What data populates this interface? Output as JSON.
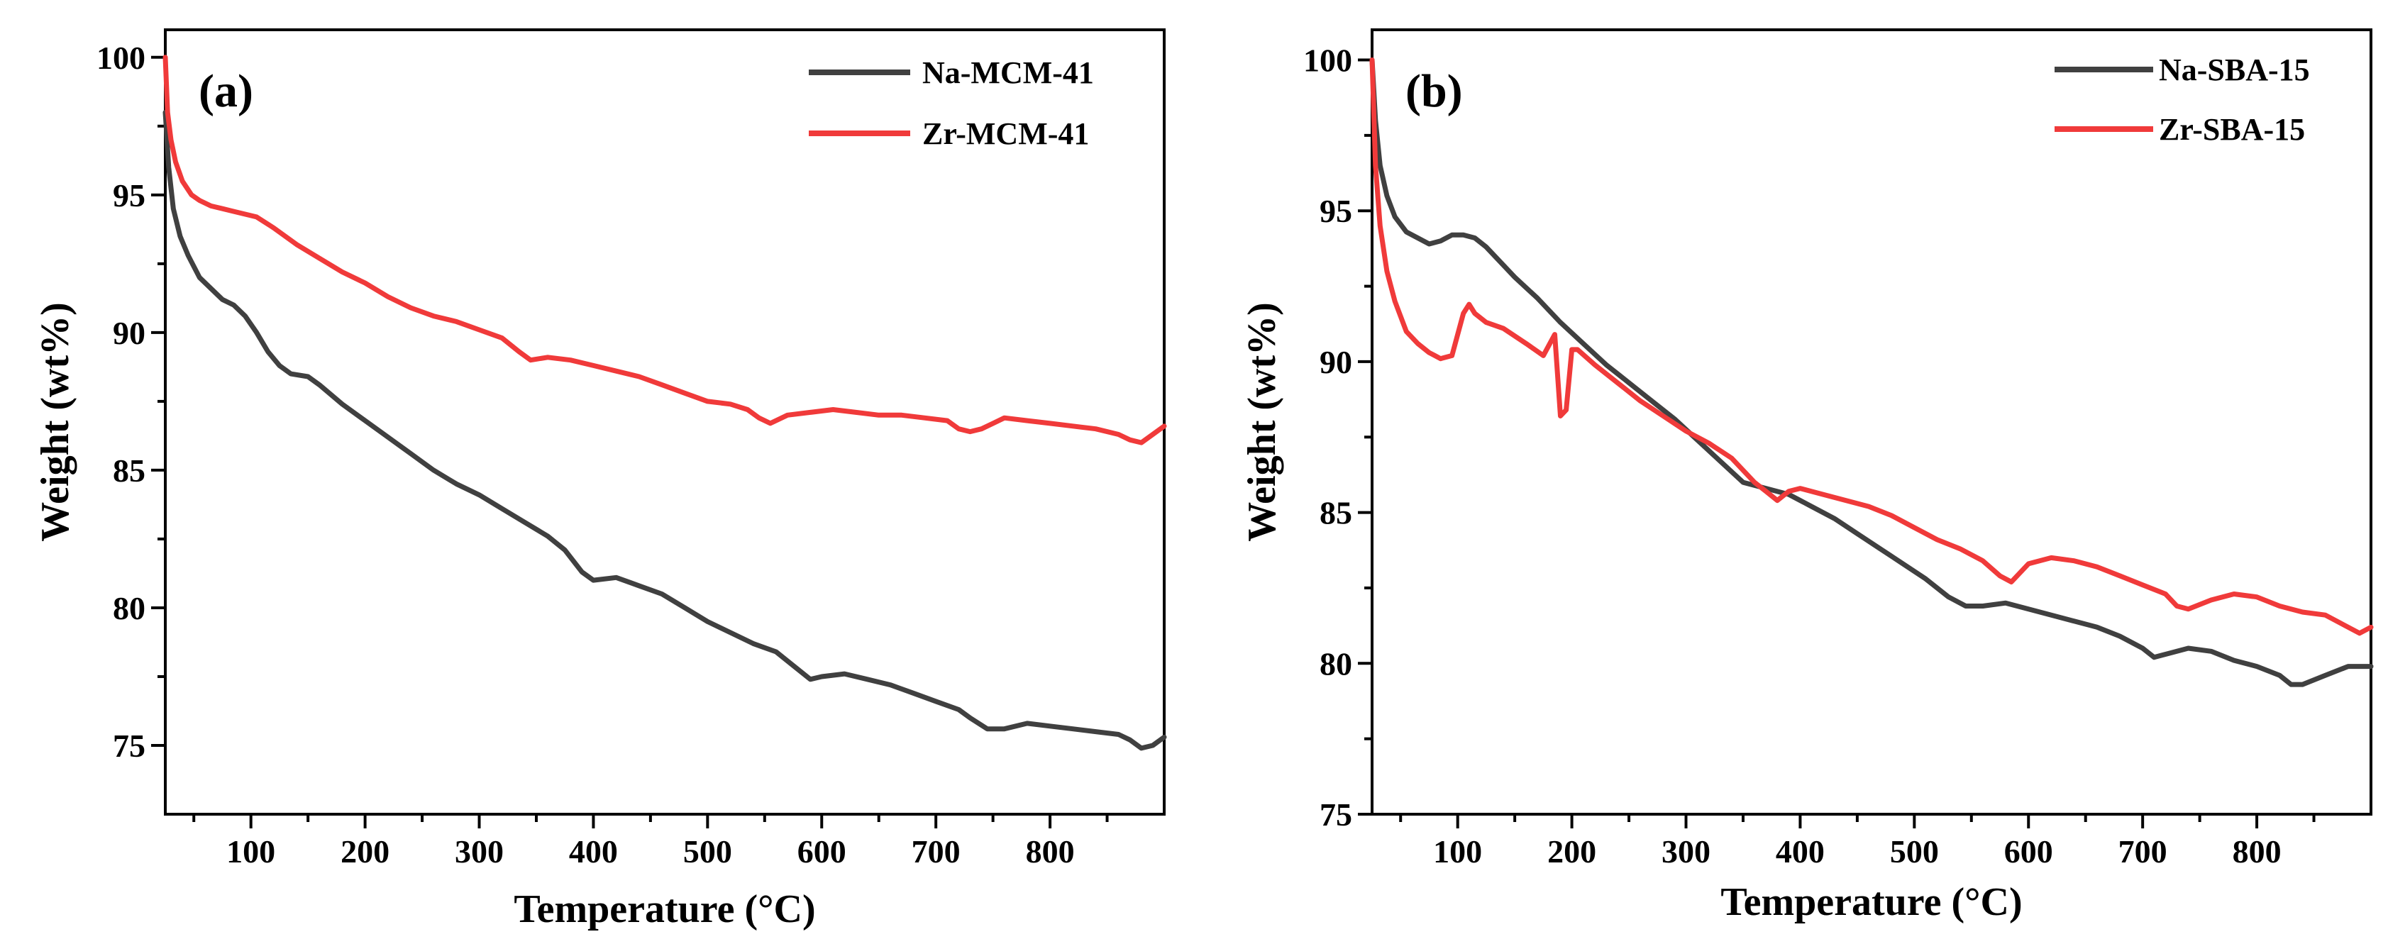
{
  "chart_data": [
    {
      "type": "line",
      "panel_label": "(a)",
      "xlabel": "Temperature (°C)",
      "ylabel": "Weight (wt%)",
      "xlim": [
        25,
        900
      ],
      "ylim": [
        72.5,
        101
      ],
      "xticks": [
        100,
        200,
        300,
        400,
        500,
        600,
        700,
        800
      ],
      "yticks": [
        75,
        80,
        85,
        90,
        95,
        100
      ],
      "legend_position": "top-right",
      "series": [
        {
          "name": "Na-MCM-41",
          "color": "#404040",
          "x": [
            25,
            28,
            32,
            38,
            45,
            55,
            65,
            75,
            85,
            95,
            105,
            115,
            125,
            135,
            150,
            160,
            180,
            200,
            220,
            240,
            260,
            280,
            300,
            320,
            340,
            360,
            375,
            390,
            400,
            420,
            440,
            460,
            480,
            500,
            520,
            540,
            560,
            575,
            590,
            600,
            620,
            640,
            660,
            680,
            700,
            720,
            730,
            745,
            760,
            780,
            800,
            820,
            840,
            860,
            870,
            880,
            890,
            900
          ],
          "y": [
            98.0,
            96.0,
            94.5,
            93.5,
            92.8,
            92.0,
            91.6,
            91.2,
            91.0,
            90.6,
            90.0,
            89.3,
            88.8,
            88.5,
            88.4,
            88.1,
            87.4,
            86.8,
            86.2,
            85.6,
            85.0,
            84.5,
            84.1,
            83.6,
            83.1,
            82.6,
            82.1,
            81.3,
            81.0,
            81.1,
            80.8,
            80.5,
            80.0,
            79.5,
            79.1,
            78.7,
            78.4,
            77.9,
            77.4,
            77.5,
            77.6,
            77.4,
            77.2,
            76.9,
            76.6,
            76.3,
            76.0,
            75.6,
            75.6,
            75.8,
            75.7,
            75.6,
            75.5,
            75.4,
            75.2,
            74.9,
            75.0,
            75.3
          ]
        },
        {
          "name": "Zr-MCM-41",
          "color": "#f03a3a",
          "x": [
            25,
            27,
            30,
            34,
            40,
            48,
            55,
            65,
            75,
            85,
            95,
            105,
            120,
            140,
            160,
            180,
            200,
            220,
            240,
            260,
            280,
            300,
            320,
            335,
            345,
            360,
            380,
            400,
            420,
            440,
            460,
            480,
            500,
            520,
            535,
            545,
            555,
            570,
            590,
            610,
            630,
            650,
            670,
            690,
            710,
            720,
            730,
            740,
            760,
            780,
            800,
            820,
            840,
            860,
            870,
            880,
            890,
            900
          ],
          "y": [
            100.0,
            98.0,
            97.0,
            96.2,
            95.5,
            95.0,
            94.8,
            94.6,
            94.5,
            94.4,
            94.3,
            94.2,
            93.8,
            93.2,
            92.7,
            92.2,
            91.8,
            91.3,
            90.9,
            90.6,
            90.4,
            90.1,
            89.8,
            89.3,
            89.0,
            89.1,
            89.0,
            88.8,
            88.6,
            88.4,
            88.1,
            87.8,
            87.5,
            87.4,
            87.2,
            86.9,
            86.7,
            87.0,
            87.1,
            87.2,
            87.1,
            87.0,
            87.0,
            86.9,
            86.8,
            86.5,
            86.4,
            86.5,
            86.9,
            86.8,
            86.7,
            86.6,
            86.5,
            86.3,
            86.1,
            86.0,
            86.3,
            86.6
          ]
        }
      ]
    },
    {
      "type": "line",
      "panel_label": "(b)",
      "xlabel": "Temperature (°C)",
      "ylabel": "Weight (wt%)",
      "xlim": [
        25,
        900
      ],
      "ylim": [
        75,
        101
      ],
      "xticks": [
        100,
        200,
        300,
        400,
        500,
        600,
        700,
        800
      ],
      "yticks": [
        75,
        80,
        85,
        90,
        95,
        100
      ],
      "legend_position": "top-right",
      "series": [
        {
          "name": "Na-SBA-15",
          "color": "#404040",
          "x": [
            25,
            28,
            32,
            38,
            45,
            55,
            65,
            75,
            85,
            95,
            105,
            115,
            125,
            135,
            150,
            170,
            190,
            210,
            230,
            250,
            270,
            290,
            310,
            330,
            350,
            370,
            390,
            410,
            430,
            450,
            470,
            490,
            510,
            530,
            545,
            560,
            580,
            600,
            620,
            640,
            660,
            680,
            700,
            710,
            720,
            740,
            760,
            780,
            800,
            820,
            830,
            840,
            860,
            880,
            900
          ],
          "y": [
            100.0,
            98.0,
            96.5,
            95.5,
            94.8,
            94.3,
            94.1,
            93.9,
            94.0,
            94.2,
            94.2,
            94.1,
            93.8,
            93.4,
            92.8,
            92.1,
            91.3,
            90.6,
            89.9,
            89.3,
            88.7,
            88.1,
            87.4,
            86.7,
            86.0,
            85.8,
            85.6,
            85.2,
            84.8,
            84.3,
            83.8,
            83.3,
            82.8,
            82.2,
            81.9,
            81.9,
            82.0,
            81.8,
            81.6,
            81.4,
            81.2,
            80.9,
            80.5,
            80.2,
            80.3,
            80.5,
            80.4,
            80.1,
            79.9,
            79.6,
            79.3,
            79.3,
            79.6,
            79.9,
            79.9
          ]
        },
        {
          "name": "Zr-SBA-15",
          "color": "#f03a3a",
          "x": [
            25,
            28,
            32,
            38,
            45,
            55,
            65,
            75,
            80,
            85,
            95,
            105,
            110,
            115,
            125,
            140,
            160,
            175,
            185,
            190,
            195,
            200,
            205,
            220,
            240,
            260,
            280,
            300,
            320,
            340,
            360,
            370,
            380,
            390,
            400,
            420,
            440,
            460,
            480,
            500,
            520,
            540,
            560,
            575,
            585,
            600,
            620,
            640,
            660,
            680,
            700,
            720,
            730,
            740,
            760,
            780,
            800,
            820,
            840,
            860,
            880,
            890,
            900
          ],
          "y": [
            100.0,
            96.5,
            94.5,
            93.0,
            92.0,
            91.0,
            90.6,
            90.3,
            90.2,
            90.1,
            90.2,
            91.6,
            91.9,
            91.6,
            91.3,
            91.1,
            90.6,
            90.2,
            90.9,
            88.2,
            88.4,
            90.4,
            90.4,
            89.9,
            89.3,
            88.7,
            88.2,
            87.7,
            87.3,
            86.8,
            86.0,
            85.7,
            85.4,
            85.7,
            85.8,
            85.6,
            85.4,
            85.2,
            84.9,
            84.5,
            84.1,
            83.8,
            83.4,
            82.9,
            82.7,
            83.3,
            83.5,
            83.4,
            83.2,
            82.9,
            82.6,
            82.3,
            81.9,
            81.8,
            82.1,
            82.3,
            82.2,
            81.9,
            81.7,
            81.6,
            81.2,
            81.0,
            81.2
          ]
        }
      ]
    }
  ]
}
